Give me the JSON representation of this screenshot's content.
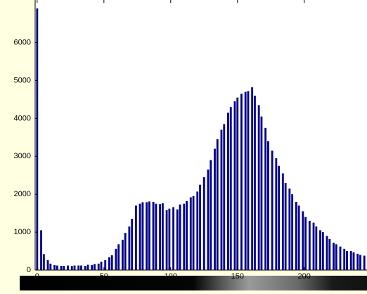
{
  "chart_data": {
    "type": "histogram",
    "color": "#00008b",
    "xlim": [
      -1.5,
      247
    ],
    "ylim": [
      0,
      6900
    ],
    "xticks": [
      0,
      50,
      100,
      150,
      200
    ],
    "yticks": [
      0,
      1000,
      2000,
      3000,
      4000,
      5000,
      6000
    ],
    "x": [
      0,
      3,
      5,
      8,
      10,
      13,
      15,
      18,
      20,
      23,
      26,
      28,
      31,
      33,
      36,
      38,
      41,
      43,
      46,
      48,
      51,
      54,
      56,
      59,
      61,
      64,
      66,
      69,
      71,
      74,
      77,
      79,
      82,
      84,
      87,
      89,
      92,
      94,
      97,
      99,
      102,
      105,
      107,
      110,
      112,
      115,
      117,
      120,
      122,
      125,
      128,
      130,
      133,
      135,
      138,
      140,
      143,
      145,
      148,
      150,
      153,
      156,
      158,
      161,
      163,
      166,
      168,
      171,
      173,
      176,
      179,
      181,
      184,
      186,
      189,
      191,
      194,
      196,
      199,
      201,
      204,
      207,
      209,
      212,
      214,
      217,
      219,
      222,
      224,
      227,
      230,
      232,
      235,
      237,
      240,
      242,
      245
    ],
    "values": [
      6900,
      1050,
      420,
      260,
      170,
      130,
      120,
      110,
      110,
      120,
      110,
      120,
      120,
      120,
      110,
      140,
      130,
      160,
      170,
      220,
      260,
      340,
      390,
      560,
      680,
      800,
      980,
      1150,
      1350,
      1700,
      1750,
      1790,
      1790,
      1810,
      1800,
      1750,
      1740,
      1760,
      1580,
      1620,
      1660,
      1600,
      1730,
      1750,
      1820,
      1920,
      1950,
      2070,
      2250,
      2450,
      2650,
      2900,
      3200,
      3450,
      3700,
      3850,
      4150,
      4300,
      4450,
      4550,
      4650,
      4700,
      4720,
      4820,
      4600,
      4350,
      4050,
      3750,
      3400,
      3150,
      2950,
      2750,
      2550,
      2300,
      2150,
      2000,
      1800,
      1700,
      1550,
      1400,
      1300,
      1250,
      1150,
      1050,
      1000,
      900,
      820,
      720,
      680,
      620,
      560,
      500,
      500,
      470,
      430,
      400,
      380
    ]
  }
}
